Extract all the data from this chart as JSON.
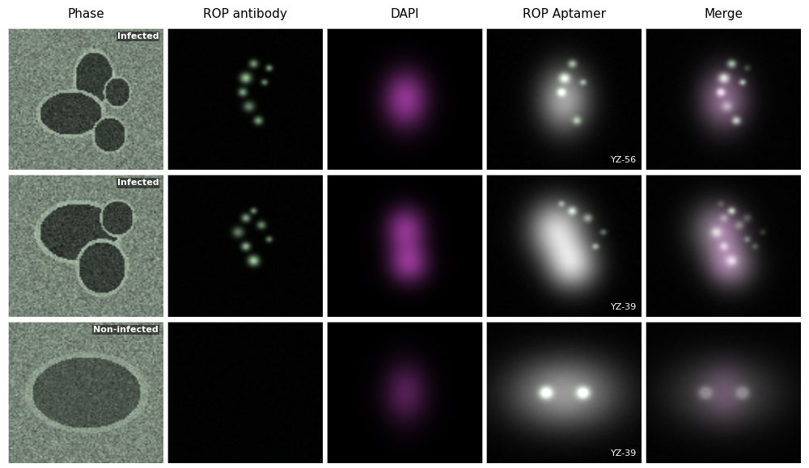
{
  "col_headers": [
    "Phase",
    "ROP antibody",
    "DAPI",
    "ROP Aptamer",
    "Merge"
  ],
  "row_labels": [
    "Infected",
    "Infected",
    "Non-infected"
  ],
  "aptamer_labels": [
    "YZ-56",
    "YZ-39",
    "YZ-39"
  ],
  "col_header_fontsize": 11,
  "row_label_fontsize": 8,
  "aptamer_label_fontsize": 8,
  "background_color": "#000000",
  "figure_bg": "#ffffff",
  "header_color": "#000000",
  "row_label_color": "#ffffff",
  "aptamer_label_color": "#ffffff",
  "n_rows": 3,
  "n_cols": 5,
  "figsize": [
    10,
    5.79
  ]
}
